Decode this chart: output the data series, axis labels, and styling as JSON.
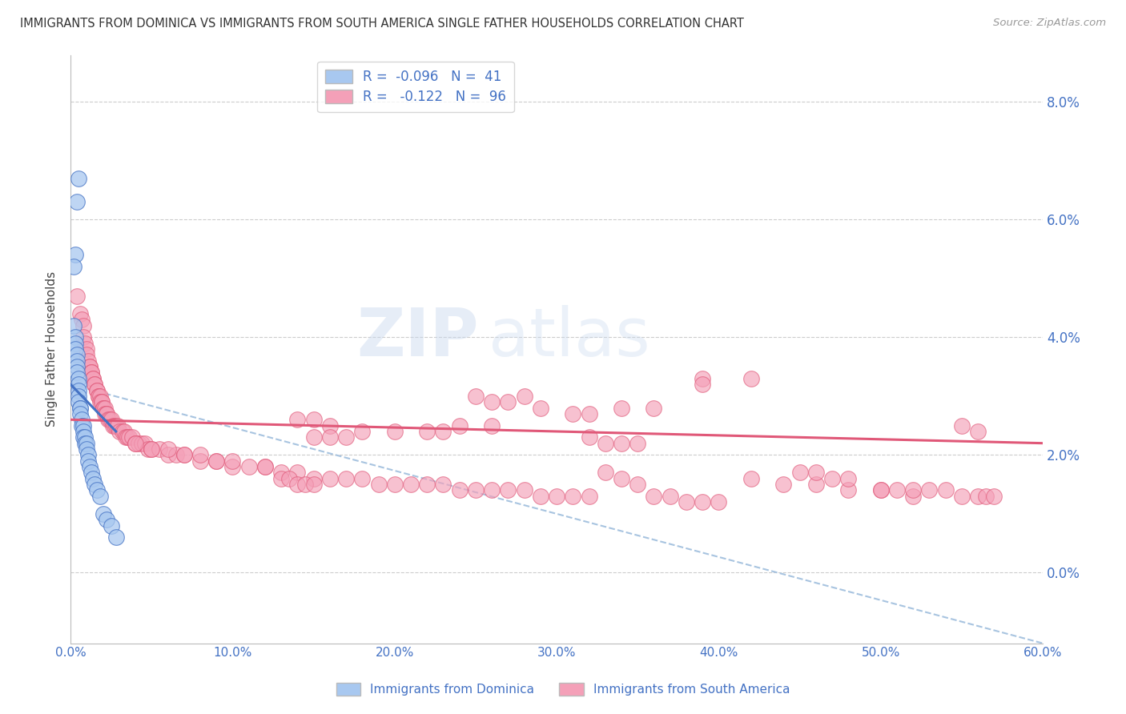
{
  "title": "IMMIGRANTS FROM DOMINICA VS IMMIGRANTS FROM SOUTH AMERICA SINGLE FATHER HOUSEHOLDS CORRELATION CHART",
  "source": "Source: ZipAtlas.com",
  "ylabel": "Single Father Households",
  "right_ytick_labels": [
    "0.0%",
    "2.0%",
    "4.0%",
    "6.0%",
    "8.0%"
  ],
  "right_ytick_values": [
    0.0,
    0.02,
    0.04,
    0.06,
    0.08
  ],
  "xmin": 0.0,
  "xmax": 0.6,
  "ymin": -0.012,
  "ymax": 0.088,
  "xtick_labels": [
    "0.0%",
    "10.0%",
    "20.0%",
    "30.0%",
    "40.0%",
    "50.0%",
    "60.0%"
  ],
  "xtick_values": [
    0.0,
    0.1,
    0.2,
    0.3,
    0.4,
    0.5,
    0.6
  ],
  "legend_label1": "Immigrants from Dominica",
  "legend_label2": "Immigrants from South America",
  "color_blue": "#A8C8F0",
  "color_pink": "#F4A0B8",
  "color_blue_line": "#4472C4",
  "color_pink_line": "#E05878",
  "color_dashed": "#A8C4E0",
  "watermark_zip": "ZIP",
  "watermark_atlas": "atlas",
  "watermark_color_zip": "#C8D8EE",
  "watermark_color_atlas": "#C8D8EE",
  "title_color": "#333333",
  "axis_color": "#4472C4",
  "dominica_x": [
    0.005,
    0.004,
    0.003,
    0.002,
    0.002,
    0.003,
    0.003,
    0.003,
    0.004,
    0.004,
    0.004,
    0.004,
    0.005,
    0.005,
    0.005,
    0.005,
    0.005,
    0.006,
    0.006,
    0.006,
    0.007,
    0.007,
    0.008,
    0.008,
    0.008,
    0.009,
    0.009,
    0.01,
    0.01,
    0.011,
    0.011,
    0.012,
    0.013,
    0.014,
    0.015,
    0.016,
    0.018,
    0.02,
    0.022,
    0.025,
    0.028
  ],
  "dominica_y": [
    0.067,
    0.063,
    0.054,
    0.052,
    0.042,
    0.04,
    0.039,
    0.038,
    0.037,
    0.036,
    0.035,
    0.034,
    0.033,
    0.032,
    0.031,
    0.03,
    0.029,
    0.028,
    0.028,
    0.027,
    0.026,
    0.025,
    0.025,
    0.024,
    0.023,
    0.023,
    0.022,
    0.022,
    0.021,
    0.02,
    0.019,
    0.018,
    0.017,
    0.016,
    0.015,
    0.014,
    0.013,
    0.01,
    0.009,
    0.008,
    0.006
  ],
  "south_america_x": [
    0.004,
    0.006,
    0.007,
    0.008,
    0.008,
    0.009,
    0.01,
    0.01,
    0.011,
    0.012,
    0.012,
    0.013,
    0.013,
    0.014,
    0.014,
    0.015,
    0.015,
    0.016,
    0.016,
    0.017,
    0.017,
    0.018,
    0.018,
    0.019,
    0.019,
    0.02,
    0.02,
    0.021,
    0.021,
    0.022,
    0.022,
    0.023,
    0.024,
    0.025,
    0.026,
    0.027,
    0.028,
    0.029,
    0.03,
    0.032,
    0.033,
    0.034,
    0.035,
    0.036,
    0.038,
    0.04,
    0.042,
    0.044,
    0.046,
    0.048,
    0.05,
    0.055,
    0.06,
    0.065,
    0.07,
    0.08,
    0.09,
    0.1,
    0.11,
    0.12,
    0.13,
    0.14,
    0.15,
    0.16,
    0.17,
    0.18,
    0.19,
    0.2,
    0.21,
    0.22,
    0.23,
    0.24,
    0.25,
    0.26,
    0.27,
    0.28,
    0.29,
    0.3,
    0.31,
    0.32,
    0.33,
    0.34,
    0.35,
    0.36,
    0.37,
    0.38,
    0.39,
    0.4,
    0.42,
    0.44,
    0.46,
    0.48,
    0.5,
    0.52,
    0.55,
    0.56
  ],
  "south_america_y": [
    0.047,
    0.044,
    0.043,
    0.042,
    0.04,
    0.039,
    0.038,
    0.037,
    0.036,
    0.035,
    0.035,
    0.034,
    0.034,
    0.033,
    0.033,
    0.032,
    0.032,
    0.031,
    0.031,
    0.03,
    0.03,
    0.03,
    0.029,
    0.029,
    0.029,
    0.028,
    0.028,
    0.028,
    0.027,
    0.027,
    0.027,
    0.026,
    0.026,
    0.026,
    0.025,
    0.025,
    0.025,
    0.025,
    0.024,
    0.024,
    0.024,
    0.023,
    0.023,
    0.023,
    0.023,
    0.022,
    0.022,
    0.022,
    0.022,
    0.021,
    0.021,
    0.021,
    0.02,
    0.02,
    0.02,
    0.019,
    0.019,
    0.018,
    0.018,
    0.018,
    0.017,
    0.017,
    0.016,
    0.016,
    0.016,
    0.016,
    0.015,
    0.015,
    0.015,
    0.015,
    0.015,
    0.014,
    0.014,
    0.014,
    0.014,
    0.014,
    0.013,
    0.013,
    0.013,
    0.013,
    0.017,
    0.016,
    0.015,
    0.013,
    0.013,
    0.012,
    0.012,
    0.012,
    0.016,
    0.015,
    0.015,
    0.014,
    0.014,
    0.013,
    0.025,
    0.024
  ],
  "sa_extra_x": [
    0.39,
    0.42,
    0.39,
    0.28,
    0.25,
    0.27,
    0.26,
    0.36,
    0.34,
    0.29,
    0.31,
    0.32,
    0.14,
    0.15,
    0.16,
    0.26,
    0.24,
    0.23,
    0.22,
    0.2,
    0.18,
    0.17,
    0.16,
    0.15,
    0.32,
    0.33,
    0.34,
    0.35,
    0.04,
    0.05,
    0.06,
    0.07,
    0.08,
    0.09,
    0.1,
    0.12,
    0.45,
    0.46,
    0.47,
    0.48,
    0.13,
    0.135,
    0.14,
    0.145,
    0.15,
    0.5,
    0.51,
    0.52,
    0.53,
    0.54,
    0.55,
    0.56,
    0.565,
    0.57
  ],
  "sa_extra_y": [
    0.033,
    0.033,
    0.032,
    0.03,
    0.03,
    0.029,
    0.029,
    0.028,
    0.028,
    0.028,
    0.027,
    0.027,
    0.026,
    0.026,
    0.025,
    0.025,
    0.025,
    0.024,
    0.024,
    0.024,
    0.024,
    0.023,
    0.023,
    0.023,
    0.023,
    0.022,
    0.022,
    0.022,
    0.022,
    0.021,
    0.021,
    0.02,
    0.02,
    0.019,
    0.019,
    0.018,
    0.017,
    0.017,
    0.016,
    0.016,
    0.016,
    0.016,
    0.015,
    0.015,
    0.015,
    0.014,
    0.014,
    0.014,
    0.014,
    0.014,
    0.013,
    0.013,
    0.013,
    0.013
  ],
  "blue_line_x": [
    0.0,
    0.028
  ],
  "blue_line_y_start": 0.032,
  "blue_line_y_end": 0.024,
  "pink_line_x": [
    0.0,
    0.6
  ],
  "pink_line_y_start": 0.026,
  "pink_line_y_end": 0.022,
  "dashed_line_x": [
    0.0,
    0.6
  ],
  "dashed_line_y_start": 0.032,
  "dashed_line_y_end": -0.012
}
